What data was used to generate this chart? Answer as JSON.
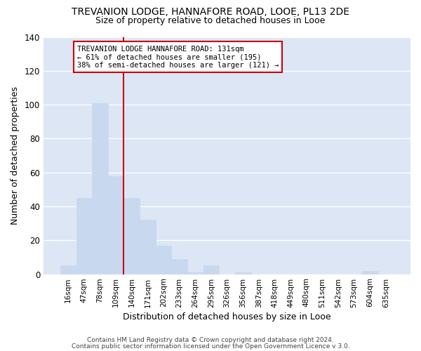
{
  "title1": "TREVANION LODGE, HANNAFORE ROAD, LOOE, PL13 2DE",
  "title2": "Size of property relative to detached houses in Looe",
  "xlabel": "Distribution of detached houses by size in Looe",
  "ylabel": "Number of detached properties",
  "categories": [
    "16sqm",
    "47sqm",
    "78sqm",
    "109sqm",
    "140sqm",
    "171sqm",
    "202sqm",
    "233sqm",
    "264sqm",
    "295sqm",
    "326sqm",
    "356sqm",
    "387sqm",
    "418sqm",
    "449sqm",
    "480sqm",
    "511sqm",
    "542sqm",
    "573sqm",
    "604sqm",
    "635sqm"
  ],
  "values": [
    5,
    45,
    101,
    58,
    45,
    32,
    17,
    9,
    1,
    5,
    0,
    1,
    0,
    0,
    0,
    0,
    0,
    0,
    0,
    2,
    0
  ],
  "bar_color": "#c8d9ef",
  "bar_edge_color": "#c8d9ef",
  "background_color": "#dce6f5",
  "fig_background_color": "#ffffff",
  "grid_color": "#ffffff",
  "vline_color": "#cc0000",
  "annotation_box_facecolor": "#ffffff",
  "annotation_border_color": "#cc0000",
  "annotation_text_line1": "TREVANION LODGE HANNAFORE ROAD: 131sqm",
  "annotation_text_line2": "← 61% of detached houses are smaller (195)",
  "annotation_text_line3": "38% of semi-detached houses are larger (121) →",
  "footer1": "Contains HM Land Registry data © Crown copyright and database right 2024.",
  "footer2": "Contains public sector information licensed under the Open Government Licence v 3.0.",
  "ylim": [
    0,
    140
  ],
  "yticks": [
    0,
    20,
    40,
    60,
    80,
    100,
    120,
    140
  ],
  "vline_index": 4
}
